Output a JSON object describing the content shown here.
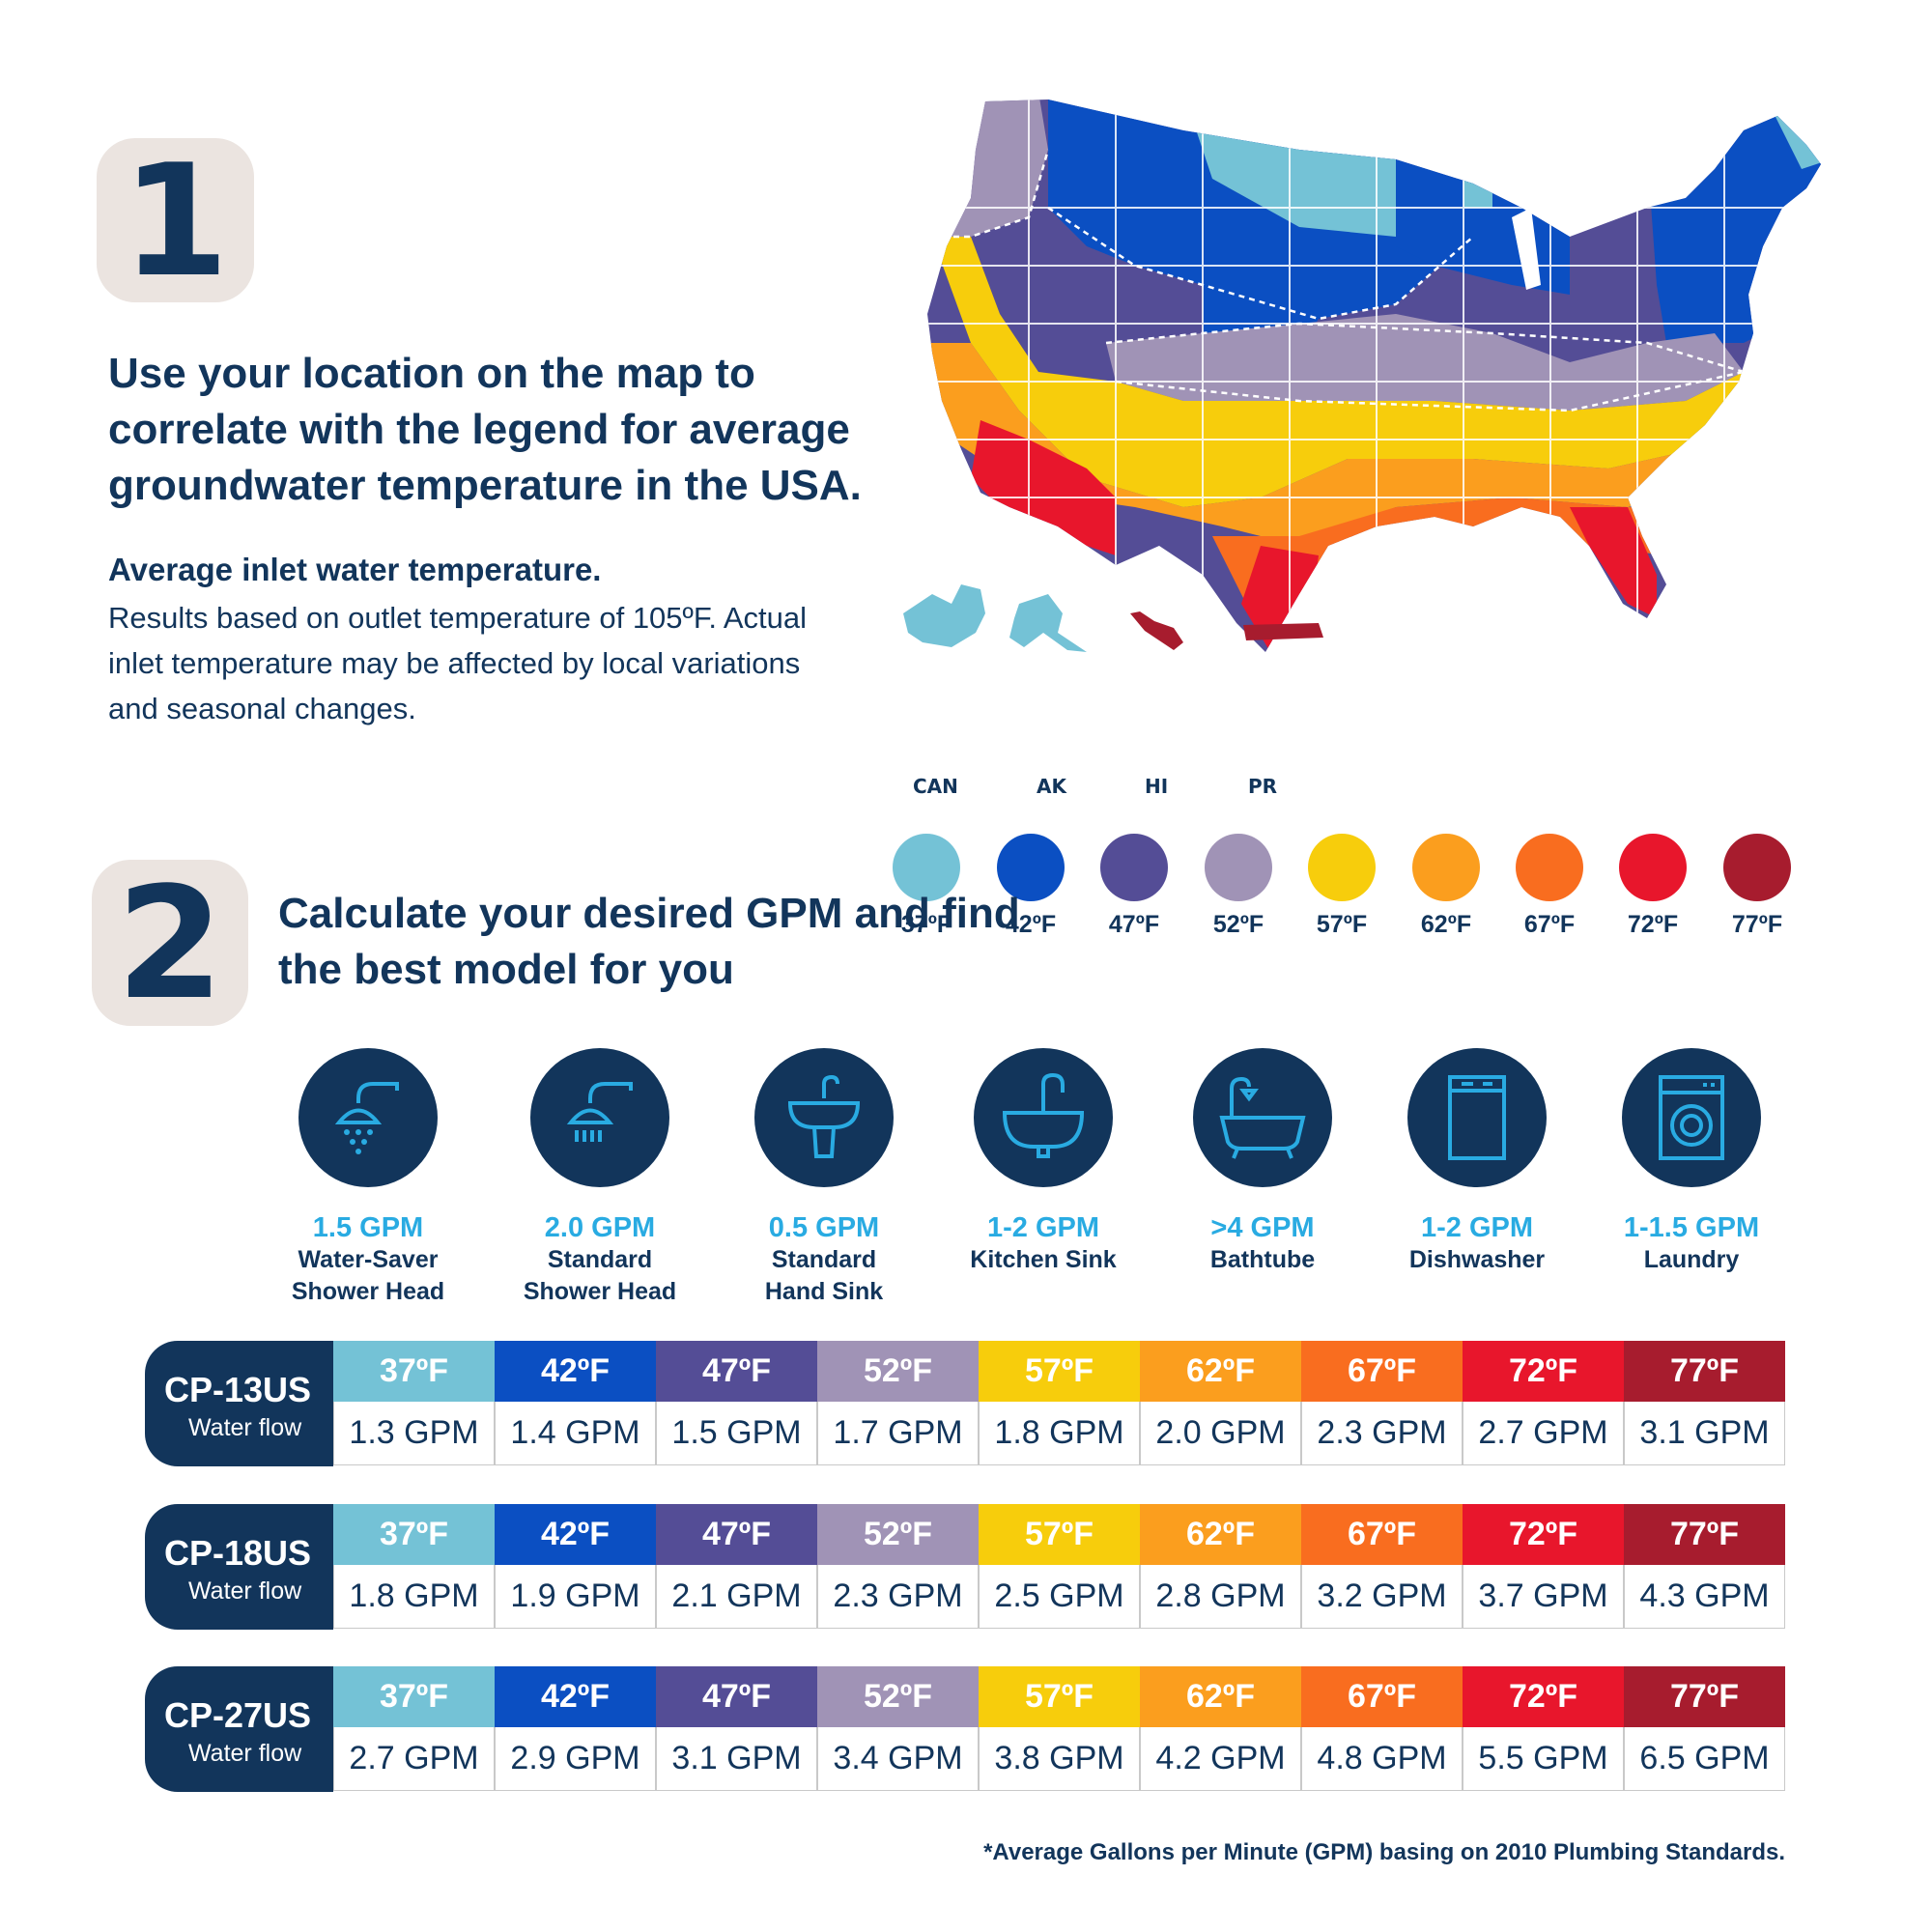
{
  "step1": {
    "badge": "1",
    "headline": "Use your location on the map to correlate with the legend for average groundwater temperature in the USA.",
    "sub_heading": "Average inlet water temperature.",
    "body": "Results based on outlet temperature of 105ºF. Actual inlet temperature may be affected by local variations and seasonal changes."
  },
  "map": {
    "territories": [
      "CAN",
      "AK",
      "HI",
      "PR"
    ]
  },
  "legend": [
    {
      "label": "37ºF",
      "color": "#74c2d6"
    },
    {
      "label": "42ºF",
      "color": "#0b4fc2"
    },
    {
      "label": "47ºF",
      "color": "#544d96"
    },
    {
      "label": "52ºF",
      "color": "#a093b6"
    },
    {
      "label": "57ºF",
      "color": "#f7cd0c"
    },
    {
      "label": "62ºF",
      "color": "#fb9e1e"
    },
    {
      "label": "67ºF",
      "color": "#f96d1f"
    },
    {
      "label": "72ºF",
      "color": "#e8162c"
    },
    {
      "label": "77ºF",
      "color": "#a71c2e"
    }
  ],
  "step2": {
    "badge": "2",
    "headline": "Calculate your desired GPM and find the best model for you"
  },
  "appliances": [
    {
      "gpm": "1.5 GPM",
      "name": "Water-Saver\nShower Head",
      "icon": "water-saver-shower-icon"
    },
    {
      "gpm": "2.0 GPM",
      "name": "Standard\nShower Head",
      "icon": "shower-head-icon"
    },
    {
      "gpm": "0.5 GPM",
      "name": "Standard\nHand Sink",
      "icon": "hand-sink-icon"
    },
    {
      "gpm": "1-2 GPM",
      "name": "Kitchen Sink",
      "icon": "kitchen-sink-icon"
    },
    {
      "gpm": ">4 GPM",
      "name": "Bathtube",
      "icon": "bathtub-icon"
    },
    {
      "gpm": "1-2 GPM",
      "name": "Dishwasher",
      "icon": "dishwasher-icon"
    },
    {
      "gpm": "1-1.5 GPM",
      "name": "Laundry",
      "icon": "washing-machine-icon"
    }
  ],
  "models": [
    {
      "name": "CP-13US",
      "sub": "Water flow",
      "temps": [
        "37ºF",
        "42ºF",
        "47ºF",
        "52ºF",
        "57ºF",
        "62ºF",
        "67ºF",
        "72ºF",
        "77ºF"
      ],
      "values": [
        "1.3 GPM",
        "1.4 GPM",
        "1.5 GPM",
        "1.7 GPM",
        "1.8 GPM",
        "2.0 GPM",
        "2.3 GPM",
        "2.7 GPM",
        "3.1 GPM"
      ]
    },
    {
      "name": "CP-18US",
      "sub": "Water flow",
      "temps": [
        "37ºF",
        "42ºF",
        "47ºF",
        "52ºF",
        "57ºF",
        "62ºF",
        "67ºF",
        "72ºF",
        "77ºF"
      ],
      "values": [
        "1.8 GPM",
        "1.9 GPM",
        "2.1 GPM",
        "2.3 GPM",
        "2.5 GPM",
        "2.8 GPM",
        "3.2 GPM",
        "3.7 GPM",
        "4.3 GPM"
      ]
    },
    {
      "name": "CP-27US",
      "sub": "Water flow",
      "temps": [
        "37ºF",
        "42ºF",
        "47ºF",
        "52ºF",
        "57ºF",
        "62ºF",
        "67ºF",
        "72ºF",
        "77ºF"
      ],
      "values": [
        "2.7 GPM",
        "2.9 GPM",
        "3.1 GPM",
        "3.4 GPM",
        "3.8 GPM",
        "4.2 GPM",
        "4.8 GPM",
        "5.5 GPM",
        "6.5 GPM"
      ]
    }
  ],
  "footnote": "*Average Gallons per Minute (GPM) basing on 2010 Plumbing Standards."
}
